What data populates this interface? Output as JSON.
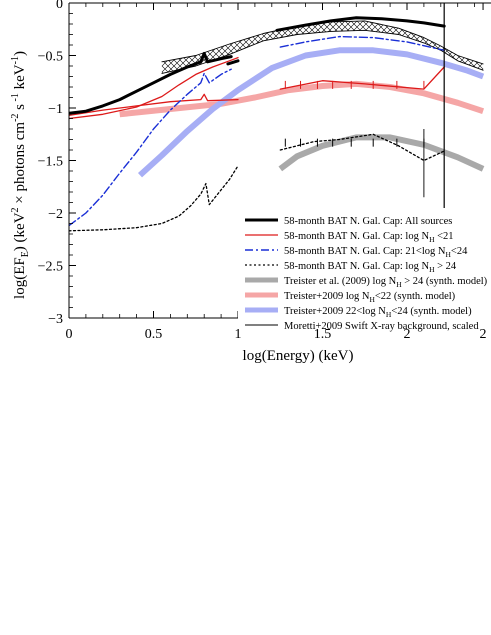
{
  "chart_data": {
    "type": "line",
    "xlabel": "log(Energy) (keV)",
    "ylabel": "log(EF_E) (keV^2 × photons cm^-2 s^-1 keV^-1)",
    "xlim": [
      0,
      2.45
    ],
    "ylim": [
      -3,
      0
    ],
    "x_ticks": [
      "0",
      "0.5",
      "1",
      "1.5",
      "2",
      "2"
    ],
    "x_tick_values": [
      0,
      0.5,
      1,
      1.5,
      2,
      2.45
    ],
    "y_ticks": [
      "0",
      "−0.5",
      "−1",
      "−1.5",
      "−2",
      "−2.5",
      "−3"
    ],
    "y_tick_values": [
      0,
      -0.5,
      -1,
      -1.5,
      -2,
      -2.5,
      -3
    ],
    "legend_position": "lower-right",
    "series": [
      {
        "name": "58-month BAT N. Gal. Cap: All sources",
        "color": "#000000",
        "style": "solid",
        "width": 3,
        "segments": [
          [
            [
              0,
              -1.05
            ],
            [
              0.1,
              -1.03
            ],
            [
              0.2,
              -0.98
            ],
            [
              0.3,
              -0.92
            ],
            [
              0.4,
              -0.84
            ],
            [
              0.5,
              -0.76
            ],
            [
              0.6,
              -0.68
            ],
            [
              0.7,
              -0.61
            ],
            [
              0.78,
              -0.56
            ],
            [
              0.8,
              -0.48
            ],
            [
              0.82,
              -0.56
            ],
            [
              0.9,
              -0.53
            ],
            [
              0.96,
              -0.51
            ]
          ],
          [
            [
              0.94,
              -0.58
            ],
            [
              1.0,
              -0.55
            ]
          ],
          [
            [
              1.23,
              -0.26
            ],
            [
              1.4,
              -0.21
            ],
            [
              1.55,
              -0.17
            ],
            [
              1.7,
              -0.14
            ],
            [
              1.85,
              -0.15
            ],
            [
              2.0,
              -0.17
            ],
            [
              2.1,
              -0.19
            ],
            [
              2.22,
              -0.22
            ]
          ]
        ]
      },
      {
        "name": "58-month BAT N. Gal. Cap: log N_H <21",
        "color": "#dd1a1a",
        "style": "solid",
        "width": 1.3,
        "segments": [
          [
            [
              0,
              -1.1
            ],
            [
              0.2,
              -1.06
            ],
            [
              0.4,
              -0.99
            ],
            [
              0.55,
              -0.89
            ],
            [
              0.65,
              -0.78
            ],
            [
              0.75,
              -0.68
            ],
            [
              0.85,
              -0.61
            ],
            [
              0.95,
              -0.55
            ],
            [
              1.0,
              -0.52
            ]
          ],
          [
            [
              0,
              -1.07
            ],
            [
              0.2,
              -1.02
            ],
            [
              0.4,
              -0.98
            ],
            [
              0.6,
              -0.94
            ],
            [
              0.78,
              -0.92
            ],
            [
              0.8,
              -0.87
            ],
            [
              0.82,
              -0.93
            ],
            [
              1.0,
              -0.92
            ]
          ],
          [
            [
              1.25,
              -0.82
            ],
            [
              1.5,
              -0.74
            ],
            [
              1.75,
              -0.77
            ],
            [
              2.1,
              -0.82
            ],
            [
              2.22,
              -0.61
            ]
          ]
        ]
      },
      {
        "name": "58-month BAT N. Gal. Cap: 21<log N_H<24",
        "color": "#1a2fd6",
        "style": "dashdot",
        "width": 1.4,
        "segments": [
          [
            [
              0,
              -2.12
            ],
            [
              0.1,
              -2.0
            ],
            [
              0.2,
              -1.83
            ],
            [
              0.3,
              -1.62
            ],
            [
              0.4,
              -1.42
            ],
            [
              0.5,
              -1.2
            ],
            [
              0.6,
              -1.02
            ],
            [
              0.7,
              -0.87
            ],
            [
              0.78,
              -0.76
            ],
            [
              0.8,
              -0.67
            ],
            [
              0.83,
              -0.76
            ],
            [
              0.9,
              -0.68
            ],
            [
              0.96,
              -0.63
            ]
          ],
          [
            [
              1.25,
              -0.42
            ],
            [
              1.4,
              -0.37
            ],
            [
              1.6,
              -0.32
            ],
            [
              1.8,
              -0.33
            ],
            [
              2.0,
              -0.37
            ],
            [
              2.22,
              -0.45
            ]
          ]
        ]
      },
      {
        "name": "58-month BAT N. Gal. Cap: log N_H > 24",
        "color": "#000000",
        "style": "dotted",
        "width": 1.3,
        "segments": [
          [
            [
              0,
              -2.17
            ],
            [
              0.2,
              -2.16
            ],
            [
              0.4,
              -2.14
            ],
            [
              0.55,
              -2.1
            ],
            [
              0.65,
              -2.03
            ],
            [
              0.72,
              -1.93
            ],
            [
              0.78,
              -1.82
            ],
            [
              0.81,
              -1.72
            ],
            [
              0.83,
              -1.92
            ],
            [
              0.88,
              -1.82
            ],
            [
              0.95,
              -1.68
            ],
            [
              1.0,
              -1.55
            ]
          ],
          [
            [
              1.25,
              -1.4
            ],
            [
              1.35,
              -1.36
            ],
            [
              1.45,
              -1.32
            ],
            [
              1.6,
              -1.3
            ],
            [
              1.8,
              -1.25
            ],
            [
              1.95,
              -1.36
            ],
            [
              2.1,
              -1.5
            ],
            [
              2.22,
              -1.41
            ]
          ]
        ]
      },
      {
        "name": "Treister et al. (2009) log N_H > 24 (synth. model)",
        "color": "#a9a9a9",
        "style": "solid",
        "width": 6,
        "segments": [
          [
            [
              1.25,
              -1.58
            ],
            [
              1.35,
              -1.46
            ],
            [
              1.5,
              -1.36
            ],
            [
              1.7,
              -1.28
            ],
            [
              1.9,
              -1.28
            ],
            [
              2.1,
              -1.35
            ],
            [
              2.3,
              -1.47
            ],
            [
              2.45,
              -1.58
            ]
          ]
        ]
      },
      {
        "name": "Treister+2009 log N_H<22 (synth. model)",
        "color": "#f5a6a6",
        "style": "solid",
        "width": 6,
        "segments": [
          [
            [
              0.3,
              -1.06
            ],
            [
              0.6,
              -1.01
            ],
            [
              0.9,
              -0.96
            ],
            [
              1.1,
              -0.9
            ],
            [
              1.3,
              -0.83
            ],
            [
              1.5,
              -0.79
            ],
            [
              1.7,
              -0.77
            ],
            [
              1.9,
              -0.8
            ],
            [
              2.1,
              -0.86
            ],
            [
              2.3,
              -0.95
            ],
            [
              2.45,
              -1.03
            ]
          ]
        ]
      },
      {
        "name": "Treister+2009  22<log N_H<24 (synth. model)",
        "color": "#a7aef5",
        "style": "solid",
        "width": 6,
        "segments": [
          [
            [
              0.42,
              -1.64
            ],
            [
              0.55,
              -1.45
            ],
            [
              0.7,
              -1.22
            ],
            [
              0.85,
              -1.01
            ],
            [
              1.0,
              -0.83
            ],
            [
              1.2,
              -0.62
            ],
            [
              1.4,
              -0.5
            ],
            [
              1.6,
              -0.45
            ],
            [
              1.8,
              -0.45
            ],
            [
              2.0,
              -0.49
            ],
            [
              2.2,
              -0.57
            ],
            [
              2.35,
              -0.64
            ],
            [
              2.45,
              -0.7
            ]
          ]
        ]
      },
      {
        "name": "Moretti+2009 Swift X-ray background, scaled",
        "color": "#000000",
        "style": "solid",
        "width": 0.9,
        "segments": [
          [
            [
              0.55,
              -0.56
            ],
            [
              0.75,
              -0.5
            ],
            [
              0.95,
              -0.39
            ],
            [
              1.15,
              -0.29
            ],
            [
              1.35,
              -0.22
            ],
            [
              1.55,
              -0.18
            ],
            [
              1.75,
              -0.17
            ],
            [
              1.95,
              -0.24
            ],
            [
              2.1,
              -0.33
            ],
            [
              2.2,
              -0.41
            ],
            [
              2.3,
              -0.5
            ],
            [
              2.45,
              -0.58
            ]
          ],
          [
            [
              0.55,
              -0.67
            ],
            [
              0.75,
              -0.6
            ],
            [
              0.95,
              -0.49
            ],
            [
              1.15,
              -0.36
            ],
            [
              1.35,
              -0.3
            ],
            [
              1.55,
              -0.27
            ],
            [
              1.75,
              -0.26
            ],
            [
              1.95,
              -0.3
            ],
            [
              2.1,
              -0.38
            ],
            [
              2.2,
              -0.45
            ],
            [
              2.3,
              -0.55
            ],
            [
              2.45,
              -0.64
            ]
          ]
        ]
      }
    ]
  }
}
